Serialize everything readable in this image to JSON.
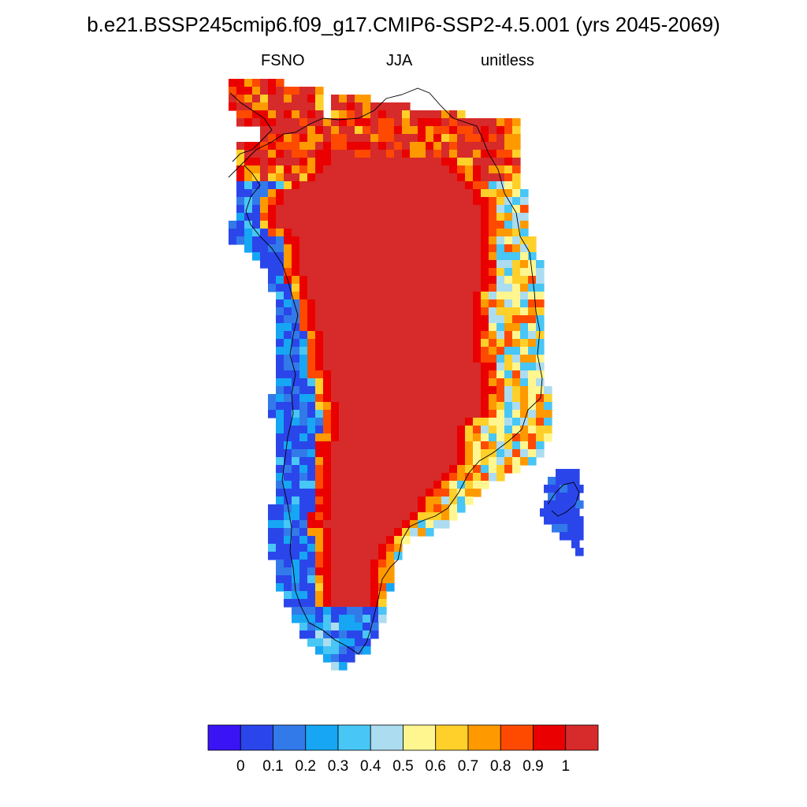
{
  "title": "b.e21.BSSP245cmip6.f09_g17.CMIP6-SSP2-4.5.001 (yrs 2045-2069)",
  "subtitle_left": "FSNO",
  "subtitle_center": "JJA",
  "subtitle_right": "unitless",
  "colors": {
    "background": "#ffffff",
    "coastline": "#000000"
  },
  "colorbar": {
    "colors": [
      "#3a14f5",
      "#2a46ea",
      "#327aea",
      "#16a6f4",
      "#48c6f5",
      "#acdcef",
      "#fff690",
      "#ffd02a",
      "#fe9a00",
      "#fe4a00",
      "#ea0000",
      "#d62b2a"
    ],
    "tick_labels": [
      "0",
      "0.1",
      "0.2",
      "0.3",
      "0.4",
      "0.5",
      "0.6",
      "0.7",
      "0.8",
      "0.9",
      "1"
    ]
  },
  "chart_data": {
    "type": "heatmap",
    "variable": "FSNO",
    "season": "JJA",
    "units": "unitless",
    "contour_levels": [
      0,
      0.1,
      0.2,
      0.3,
      0.4,
      0.5,
      0.6,
      0.7,
      0.8,
      0.9,
      1
    ],
    "region_values": {
      "interior_ice_sheet": 1.0,
      "north_coast_margin": 0.95,
      "east_coast_margin": 0.6,
      "west_coast_margin": 0.1,
      "south_tip": 0.2,
      "iceland_fragment": 0.05
    }
  }
}
